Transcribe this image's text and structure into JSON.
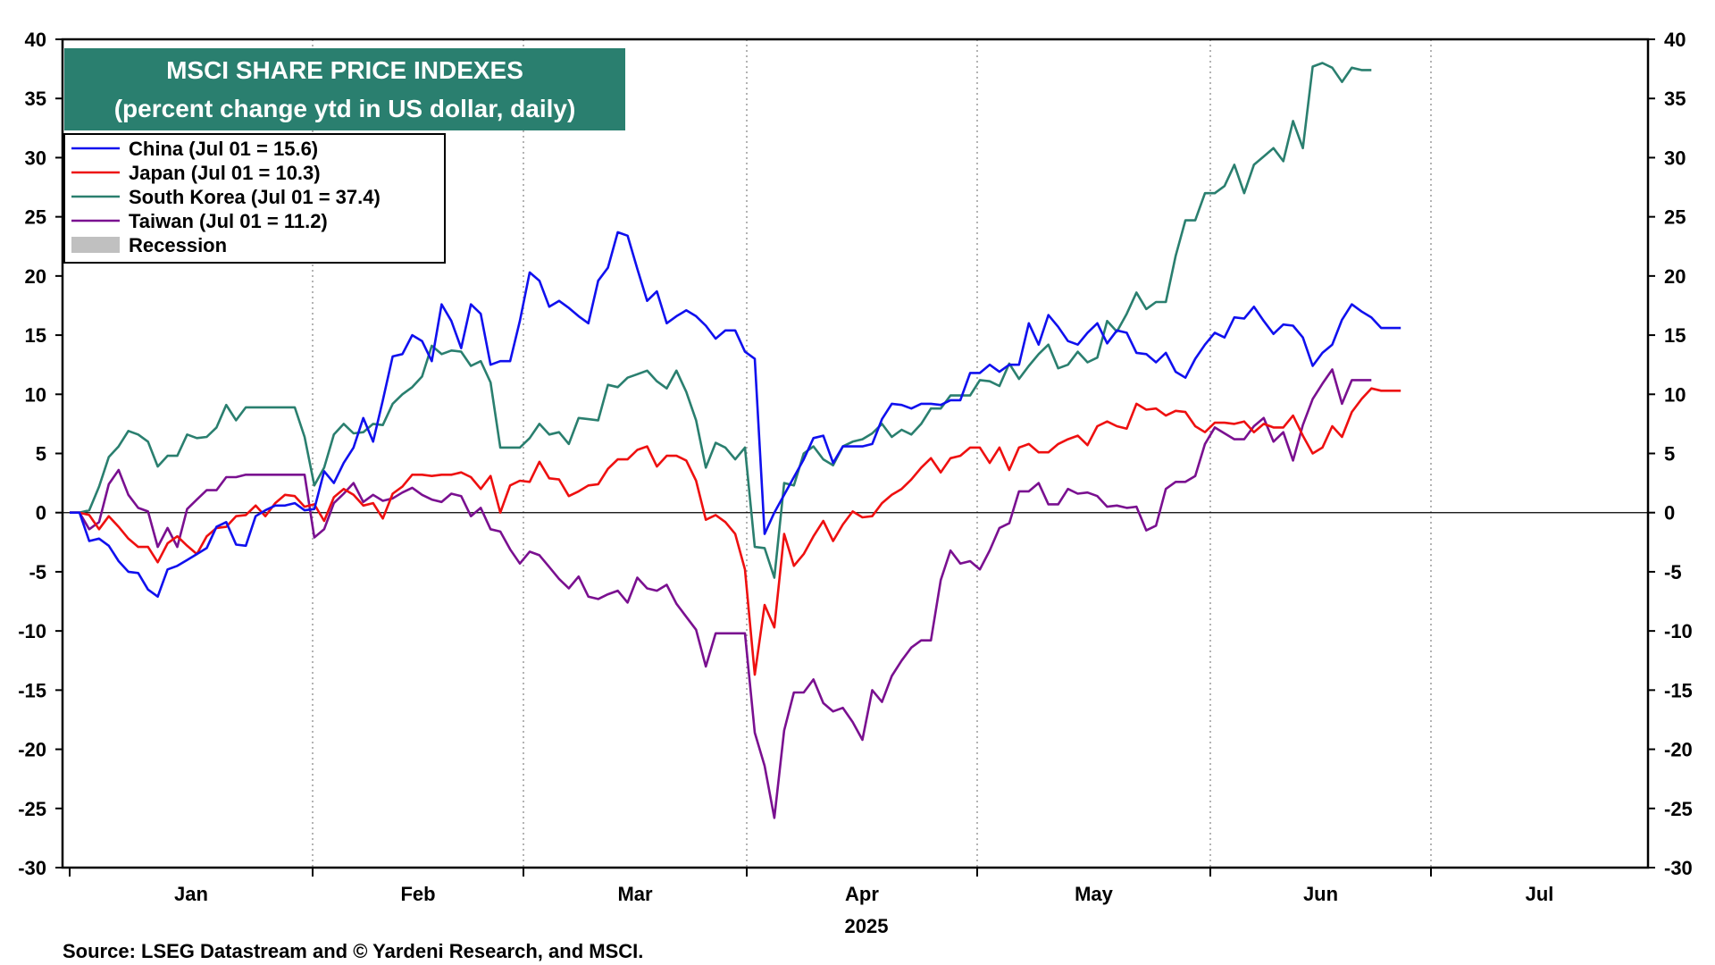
{
  "chart_data": {
    "type": "line",
    "title": "MSCI SHARE PRICE INDEXES",
    "subtitle": "(percent change ytd in US dollar, daily)",
    "source": "Source: LSEG Datastream and © Yardeni Research, and MSCI.",
    "xlabel": "2025",
    "ylim": [
      -30,
      40
    ],
    "y_ticks": [
      40,
      35,
      30,
      25,
      20,
      15,
      10,
      5,
      0,
      -5,
      -10,
      -15,
      -20,
      -25,
      -30
    ],
    "months": [
      "Jan",
      "Feb",
      "Mar",
      "Apr",
      "May",
      "Jun",
      "Jul"
    ],
    "grid": "vertical month dividers",
    "legend_position": "top-left",
    "recession_label": "Recession",
    "recession_color": "#c0c0c0",
    "series": [
      {
        "name": "China (Jul 01 = 15.6)",
        "color": "#1010ee",
        "values": [
          0,
          0,
          -2.4,
          -2.2,
          -2.8,
          -4.1,
          -5,
          -5.1,
          -6.5,
          -7.1,
          -4.8,
          -4.5,
          -4,
          -3.5,
          -3,
          -1.2,
          -0.8,
          -2.7,
          -2.8,
          -0.3,
          0.2,
          0.6,
          0.6,
          0.8,
          0.2,
          0.3,
          3.5,
          2.5,
          4.2,
          5.5,
          8,
          6,
          9.5,
          13.2,
          13.4,
          15,
          14.5,
          12.8,
          17.6,
          16.2,
          13.9,
          17.6,
          16.8,
          12.5,
          12.8,
          12.8,
          16.2,
          20.3,
          19.6,
          17.4,
          17.9,
          17.3,
          16.6,
          16,
          19.6,
          20.7,
          23.7,
          23.4,
          20.6,
          17.9,
          18.7,
          16,
          16.6,
          17.1,
          16.6,
          15.8,
          14.7,
          15.4,
          15.4,
          13.6,
          13,
          -1.8,
          0,
          1.5,
          3,
          4.5,
          6.3,
          6.5,
          4.2,
          5.6,
          5.6,
          5.6,
          5.8,
          7.9,
          9.2,
          9.1,
          8.8,
          9.2,
          9.2,
          9.1,
          9.5,
          9.5,
          11.8,
          11.8,
          12.5,
          11.9,
          12.5,
          12.5,
          16,
          14.2,
          16.7,
          15.7,
          14.5,
          14.2,
          15.2,
          16,
          14.3,
          15.4,
          15.2,
          13.5,
          13.4,
          12.7,
          13.5,
          11.9,
          11.4,
          13,
          14.2,
          15.2,
          14.8,
          16.5,
          16.4,
          17.4,
          16.2,
          15.1,
          15.9,
          15.8,
          14.8,
          12.4,
          13.5,
          14.2,
          16.3,
          17.6,
          17,
          16.5,
          15.6,
          15.6,
          15.6
        ]
      },
      {
        "name": "Japan (Jul 01 = 10.3)",
        "color": "#ee1010",
        "values": [
          0,
          0,
          -0.2,
          -1.4,
          -0.3,
          -1.2,
          -2.2,
          -2.9,
          -2.9,
          -4.2,
          -2.6,
          -2,
          -2.8,
          -3.5,
          -2,
          -1.3,
          -1.2,
          -0.3,
          -0.2,
          0.6,
          -0.3,
          0.8,
          1.5,
          1.4,
          0.5,
          0.7,
          -0.7,
          1.3,
          2,
          1.5,
          0.6,
          0.8,
          -0.5,
          1.6,
          2.2,
          3.2,
          3.2,
          3.1,
          3.2,
          3.2,
          3.4,
          3,
          2,
          3.1,
          0,
          2.3,
          2.7,
          2.6,
          4.3,
          2.9,
          2.8,
          1.4,
          1.8,
          2.3,
          2.4,
          3.7,
          4.5,
          4.5,
          5.3,
          5.6,
          3.9,
          4.8,
          4.8,
          4.4,
          2.7,
          -0.6,
          -0.2,
          -0.8,
          -1.8,
          -4.8,
          -13.7,
          -7.8,
          -9.7,
          -1.8,
          -4.5,
          -3.5,
          -2,
          -0.7,
          -2.4,
          -1,
          0.1,
          -0.4,
          -0.3,
          0.8,
          1.5,
          2,
          2.8,
          3.8,
          4.6,
          3.4,
          4.6,
          4.8,
          5.5,
          5.5,
          4.2,
          5.5,
          3.6,
          5.5,
          5.8,
          5.1,
          5.1,
          5.8,
          6.2,
          6.5,
          5.7,
          7.3,
          7.7,
          7.3,
          7.1,
          9.2,
          8.7,
          8.8,
          8.2,
          8.6,
          8.5,
          7.3,
          6.8,
          7.6,
          7.6,
          7.5,
          7.7,
          6.8,
          7.5,
          7.2,
          7.2,
          8.2,
          6.5,
          5,
          5.5,
          7.3,
          6.4,
          8.5,
          9.6,
          10.5,
          10.3,
          10.3,
          10.3
        ]
      },
      {
        "name": "South Korea (Jul 01 = 37.4)",
        "color": "#2a7f6f",
        "values": [
          0,
          0,
          0.2,
          2.2,
          4.7,
          5.6,
          6.9,
          6.6,
          6,
          3.9,
          4.8,
          4.8,
          6.6,
          6.3,
          6.4,
          7.2,
          9.1,
          7.8,
          8.9,
          8.9,
          8.9,
          8.9,
          8.9,
          8.9,
          6.4,
          2.3,
          3.8,
          6.6,
          7.5,
          6.7,
          6.8,
          7.5,
          7.4,
          9.2,
          10,
          10.6,
          11.5,
          14.1,
          13.4,
          13.7,
          13.6,
          12.4,
          12.8,
          11,
          5.5,
          5.5,
          5.5,
          6.3,
          7.5,
          6.6,
          6.8,
          5.8,
          8,
          7.9,
          7.8,
          10.8,
          10.6,
          11.4,
          11.7,
          12,
          11.1,
          10.5,
          12,
          10.2,
          7.8,
          3.8,
          5.9,
          5.5,
          4.5,
          5.5,
          -2.9,
          -3,
          -5.5,
          2.5,
          2.3,
          5,
          5.6,
          4.5,
          4,
          5.6,
          6,
          6.2,
          6.7,
          7.5,
          6.4,
          7,
          6.6,
          7.5,
          8.8,
          8.8,
          9.9,
          9.9,
          9.9,
          11.2,
          11.1,
          10.7,
          12.6,
          11.3,
          12.4,
          13.4,
          14.2,
          12.2,
          12.5,
          13.6,
          12.7,
          13.1,
          16.2,
          15.3,
          16.8,
          18.6,
          17.2,
          17.8,
          17.8,
          21.7,
          24.7,
          24.7,
          27,
          27,
          27.6,
          29.4,
          27,
          29.4,
          30.1,
          30.8,
          29.7,
          33.1,
          30.8,
          37.7,
          38,
          37.6,
          36.4,
          37.6,
          37.4,
          37.4
        ]
      },
      {
        "name": "Taiwan (Jul 01 = 11.2)",
        "color": "#7a1090",
        "values": [
          0,
          0,
          -1.4,
          -0.8,
          2.4,
          3.6,
          1.5,
          0.4,
          0.1,
          -2.9,
          -1.3,
          -2.9,
          0.3,
          1.1,
          1.9,
          1.9,
          3,
          3,
          3.2,
          3.2,
          3.2,
          3.2,
          3.2,
          3.2,
          3.2,
          -2.1,
          -1.4,
          0.8,
          1.6,
          2.5,
          0.9,
          1.5,
          1,
          1.2,
          1.7,
          2.1,
          1.5,
          1.1,
          0.9,
          1.6,
          1.4,
          -0.3,
          0.4,
          -1.4,
          -1.6,
          -3.1,
          -4.3,
          -3.3,
          -3.6,
          -4.6,
          -5.6,
          -6.4,
          -5.4,
          -7.1,
          -7.3,
          -6.9,
          -6.6,
          -7.6,
          -5.5,
          -6.4,
          -6.6,
          -6.1,
          -7.7,
          -8.8,
          -9.9,
          -13,
          -10.2,
          -10.2,
          -10.2,
          -10.2,
          -18.6,
          -21.4,
          -25.8,
          -18.4,
          -15.2,
          -15.2,
          -14.1,
          -16.1,
          -16.8,
          -16.5,
          -17.7,
          -19.2,
          -15,
          -16,
          -13.8,
          -12.5,
          -11.4,
          -10.8,
          -10.8,
          -5.7,
          -3.2,
          -4.3,
          -4.1,
          -4.8,
          -3.2,
          -1.3,
          -0.9,
          1.8,
          1.8,
          2.5,
          0.7,
          0.7,
          2,
          1.6,
          1.7,
          1.4,
          0.5,
          0.6,
          0.4,
          0.5,
          -1.5,
          -1.1,
          2,
          2.6,
          2.6,
          3.1,
          5.8,
          7.2,
          6.7,
          6.2,
          6.2,
          7.3,
          8,
          6,
          6.8,
          4.4,
          7.4,
          9.6,
          10.9,
          12.1,
          9.2,
          11.2,
          11.2,
          11.2
        ]
      }
    ]
  }
}
